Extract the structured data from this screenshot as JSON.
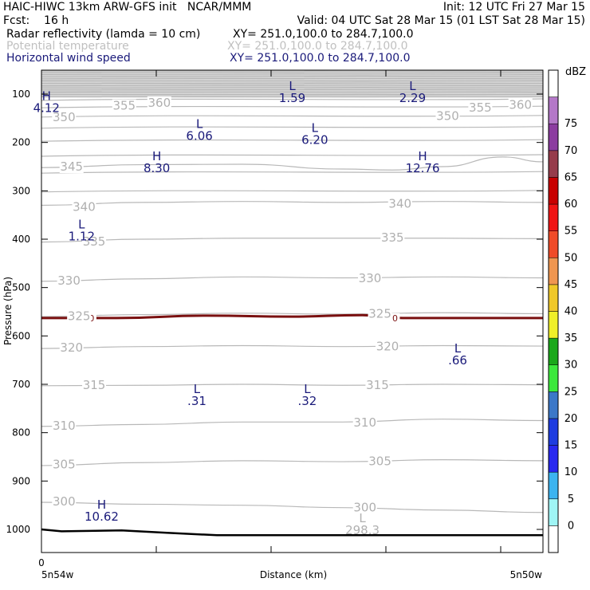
{
  "header": {
    "line1_left": "HAIC-HIWC 13km ARW-GFS init   NCAR/MMM",
    "line1_right": "Init: 12 UTC Fri 27 Mar 15",
    "line2_left": "Fcst:    16 h",
    "line2_right": "Valid: 04 UTC Sat 28 Mar 15 (01 LST Sat 28 Mar 15)",
    "field1_name": "Radar reflectivity (lamda = 10 cm)",
    "field1_xy": "XY= 251.0,100.0 to 284.7,100.0",
    "field2_name": "Potential temperature",
    "field2_xy": "XY= 251.0,100.0 to 284.7,100.0",
    "field3_name": "Horizontal wind speed",
    "field3_xy": "XY= 251.0,100.0 to 284.7,100.0"
  },
  "colors": {
    "theta": "#b8b8b8",
    "wind_labels": "#1a1a7a",
    "freezing": "#7a1010",
    "ground": "#000000"
  },
  "chart_data": {
    "type": "contour-cross-section",
    "ylabel": "Pressure (hPa)",
    "xlabel": "Distance (km)",
    "x_left_label": "5n54w",
    "x_right_label": "5n50w",
    "x_zero_label": "0",
    "y_ticks": [
      100,
      200,
      300,
      400,
      500,
      600,
      700,
      800,
      900,
      1000
    ],
    "y_range": [
      50,
      1030
    ],
    "y_scale": "linear-pressure",
    "theta_labels": [
      {
        "v": "360",
        "x": 0.235,
        "p": 118
      },
      {
        "v": "355",
        "x": 0.165,
        "p": 124
      },
      {
        "v": "355",
        "x": 0.875,
        "p": 128
      },
      {
        "v": "360",
        "x": 0.955,
        "p": 122
      },
      {
        "v": "350",
        "x": 0.045,
        "p": 148
      },
      {
        "v": "350",
        "x": 0.81,
        "p": 145
      },
      {
        "v": "345",
        "x": 0.06,
        "p": 250
      },
      {
        "v": "340",
        "x": 0.085,
        "p": 333
      },
      {
        "v": "340",
        "x": 0.715,
        "p": 327
      },
      {
        "v": "335",
        "x": 0.105,
        "p": 405
      },
      {
        "v": "335",
        "x": 0.7,
        "p": 397
      },
      {
        "v": "330",
        "x": 0.055,
        "p": 486
      },
      {
        "v": "330",
        "x": 0.655,
        "p": 481
      },
      {
        "v": "325",
        "x": 0.075,
        "p": 559
      },
      {
        "v": "325",
        "x": 0.675,
        "p": 554
      },
      {
        "v": "320",
        "x": 0.06,
        "p": 624
      },
      {
        "v": "320",
        "x": 0.69,
        "p": 622
      },
      {
        "v": "315",
        "x": 0.105,
        "p": 702
      },
      {
        "v": "315",
        "x": 0.67,
        "p": 702
      },
      {
        "v": "310",
        "x": 0.045,
        "p": 786
      },
      {
        "v": "310",
        "x": 0.645,
        "p": 779
      },
      {
        "v": "305",
        "x": 0.045,
        "p": 866
      },
      {
        "v": "305",
        "x": 0.675,
        "p": 859
      },
      {
        "v": "300",
        "x": 0.045,
        "p": 942
      },
      {
        "v": "300",
        "x": 0.645,
        "p": 955
      }
    ],
    "theta_contours": [
      {
        "v": 345,
        "pts": [
          [
            0,
            252
          ],
          [
            0.2,
            246
          ],
          [
            0.4,
            245
          ],
          [
            0.6,
            255
          ],
          [
            0.7,
            257
          ],
          [
            0.8,
            250
          ],
          [
            0.92,
            230
          ],
          [
            1,
            240
          ]
        ]
      },
      {
        "v": 340,
        "pts": [
          [
            0,
            330
          ],
          [
            0.2,
            324
          ],
          [
            0.4,
            322
          ],
          [
            0.6,
            324
          ],
          [
            0.8,
            322
          ],
          [
            1,
            324
          ]
        ]
      },
      {
        "v": 335,
        "pts": [
          [
            0,
            406
          ],
          [
            0.2,
            400
          ],
          [
            0.4,
            398
          ],
          [
            0.6,
            398
          ],
          [
            0.8,
            398
          ],
          [
            1,
            399
          ]
        ]
      },
      {
        "v": 330,
        "pts": [
          [
            0,
            487
          ],
          [
            0.2,
            482
          ],
          [
            0.4,
            478
          ],
          [
            0.6,
            480
          ],
          [
            0.8,
            478
          ],
          [
            1,
            480
          ]
        ]
      },
      {
        "v": 325,
        "pts": [
          [
            0,
            560
          ],
          [
            0.2,
            556
          ],
          [
            0.4,
            553
          ],
          [
            0.6,
            555
          ],
          [
            0.8,
            552
          ],
          [
            1,
            554
          ]
        ]
      },
      {
        "v": 320,
        "pts": [
          [
            0,
            626
          ],
          [
            0.2,
            622
          ],
          [
            0.4,
            620
          ],
          [
            0.6,
            622
          ],
          [
            0.8,
            620
          ],
          [
            1,
            621
          ]
        ]
      },
      {
        "v": 315,
        "pts": [
          [
            0,
            703
          ],
          [
            0.2,
            702
          ],
          [
            0.4,
            700
          ],
          [
            0.6,
            702
          ],
          [
            0.8,
            700
          ],
          [
            1,
            701
          ]
        ]
      },
      {
        "v": 310,
        "pts": [
          [
            0,
            787
          ],
          [
            0.2,
            783
          ],
          [
            0.4,
            778
          ],
          [
            0.6,
            778
          ],
          [
            0.8,
            772
          ],
          [
            1,
            775
          ]
        ]
      },
      {
        "v": 305,
        "pts": [
          [
            0,
            868
          ],
          [
            0.2,
            862
          ],
          [
            0.4,
            858
          ],
          [
            0.6,
            860
          ],
          [
            0.8,
            856
          ],
          [
            1,
            858
          ]
        ]
      },
      {
        "v": 300,
        "pts": [
          [
            0,
            944
          ],
          [
            0.2,
            948
          ],
          [
            0.4,
            950
          ],
          [
            0.6,
            955
          ],
          [
            0.8,
            960
          ],
          [
            1,
            965
          ]
        ]
      }
    ],
    "freezing_level": {
      "label": "0",
      "pts": [
        [
          0,
          563
        ],
        [
          0.15,
          563
        ],
        [
          0.33,
          558
        ],
        [
          0.5,
          560
        ],
        [
          0.64,
          557
        ],
        [
          0.72,
          563
        ],
        [
          1,
          563
        ]
      ]
    },
    "freezing_labels": [
      {
        "x": 0.1,
        "p": 563
      },
      {
        "x": 0.705,
        "p": 563
      }
    ],
    "ground": [
      [
        0,
        1000
      ],
      [
        0.04,
        1004
      ],
      [
        0.16,
        1002
      ],
      [
        0.25,
        1007
      ],
      [
        0.35,
        1012
      ],
      [
        0.6,
        1012
      ],
      [
        1,
        1012
      ]
    ],
    "wind_extrema": [
      {
        "t": "H",
        "v": "4.12",
        "x": 0.01,
        "p": 112
      },
      {
        "t": "L",
        "v": "1.59",
        "x": 0.5,
        "p": 92
      },
      {
        "t": "L",
        "v": "2.29",
        "x": 0.74,
        "p": 92
      },
      {
        "t": "L",
        "v": "6.06",
        "x": 0.315,
        "p": 170
      },
      {
        "t": "L",
        "v": "6.20",
        "x": 0.545,
        "p": 178
      },
      {
        "t": "H",
        "v": "8.30",
        "x": 0.23,
        "p": 237
      },
      {
        "t": "H",
        "v": "12.76",
        "x": 0.76,
        "p": 237
      },
      {
        "t": "L",
        "v": "1.12",
        "x": 0.08,
        "p": 378
      },
      {
        "t": "L",
        "v": ".66",
        "x": 0.83,
        "p": 634
      },
      {
        "t": "L",
        "v": ".31",
        "x": 0.31,
        "p": 718
      },
      {
        "t": "L",
        "v": ".32",
        "x": 0.53,
        "p": 718
      },
      {
        "t": "H",
        "v": "10.62",
        "x": 0.12,
        "p": 957
      }
    ],
    "theta_extrema": [
      {
        "t": "L",
        "v": "298.3",
        "x": 0.64,
        "p": 985
      }
    ],
    "colorbar": {
      "unit": "dBZ",
      "levels": [
        "0",
        "5",
        "10",
        "15",
        "20",
        "25",
        "30",
        "35",
        "40",
        "45",
        "50",
        "55",
        "60",
        "65",
        "70",
        "75"
      ],
      "colors": [
        "#ffffff",
        "#9ff5f5",
        "#3cb4f0",
        "#2828f0",
        "#1e3ce0",
        "#3c78c8",
        "#3ce83c",
        "#1aa81a",
        "#f0f028",
        "#f0c828",
        "#f09650",
        "#f04b28",
        "#f01414",
        "#c80000",
        "#963c4b",
        "#8c3ca0",
        "#b478c8",
        "#ffffff"
      ]
    }
  }
}
